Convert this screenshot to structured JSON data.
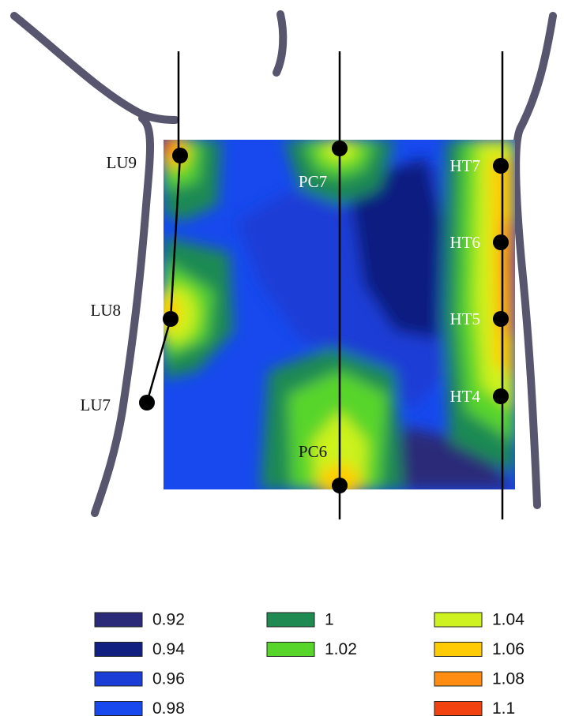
{
  "points": [
    {
      "label": "LU9"
    },
    {
      "label": "PC7"
    },
    {
      "label": "HT7"
    },
    {
      "label": "HT6"
    },
    {
      "label": "HT5"
    },
    {
      "label": "LU8"
    },
    {
      "label": "HT4"
    },
    {
      "label": "LU7"
    },
    {
      "label": "PC6"
    }
  ],
  "legend": [
    {
      "label": "0.92",
      "color": "#2b2a78"
    },
    {
      "label": "0.94",
      "color": "#111f80"
    },
    {
      "label": "0.96",
      "color": "#1a3ed6"
    },
    {
      "label": "0.98",
      "color": "#1749ee"
    },
    {
      "label": "1",
      "color": "#1f8a52"
    },
    {
      "label": "1.02",
      "color": "#58d52b"
    },
    {
      "label": "1.04",
      "color": "#cdf21f"
    },
    {
      "label": "1.06",
      "color": "#ffcb05"
    },
    {
      "label": "1.08",
      "color": "#ff8d12"
    },
    {
      "label": "1.1",
      "color": "#f2420f"
    }
  ]
}
